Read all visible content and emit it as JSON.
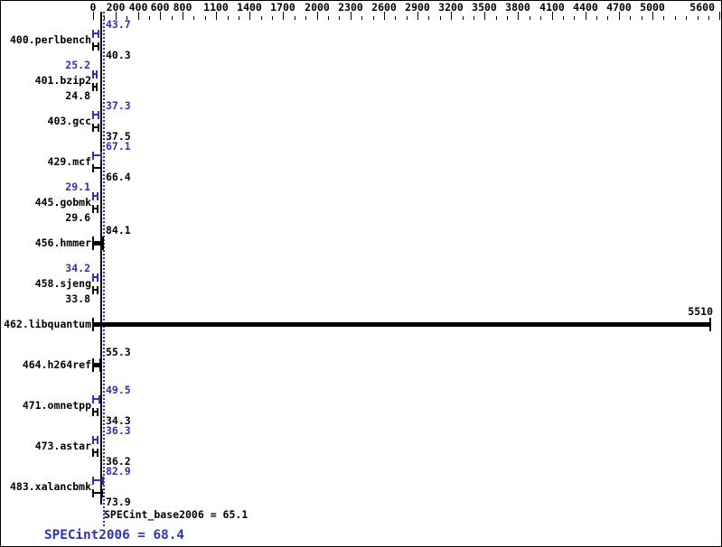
{
  "chart_data": {
    "type": "bar",
    "orientation": "horizontal",
    "title": "",
    "xlabel": "",
    "ylabel": "",
    "axis": {
      "min": 0,
      "max": 5600,
      "labeled_ticks": [
        0,
        200,
        400,
        600,
        800,
        1100,
        1400,
        1700,
        2000,
        2300,
        2600,
        2900,
        3200,
        3500,
        3800,
        4100,
        4400,
        4700,
        5000,
        5600
      ],
      "minor_tick_step": 100,
      "grid": false
    },
    "series_legend": {
      "peak_color_meaning": "peak ratio (blue)",
      "base_color_meaning": "base ratio (black)"
    },
    "benchmarks": [
      {
        "name": "400.perlbench",
        "peak": 43.7,
        "base": 40.3,
        "single": false,
        "label_side": "right"
      },
      {
        "name": "401.bzip2",
        "peak": 25.2,
        "base": 24.8,
        "single": false,
        "label_side": "left"
      },
      {
        "name": "403.gcc",
        "peak": 37.3,
        "base": 37.5,
        "single": false,
        "label_side": "right"
      },
      {
        "name": "429.mcf",
        "peak": 67.1,
        "base": 66.4,
        "single": false,
        "label_side": "right"
      },
      {
        "name": "445.gobmk",
        "peak": 29.1,
        "base": 29.6,
        "single": false,
        "label_side": "left"
      },
      {
        "name": "456.hmmer",
        "peak": null,
        "base": 84.1,
        "single": true,
        "label_side": "right"
      },
      {
        "name": "458.sjeng",
        "peak": 34.2,
        "base": 33.8,
        "single": false,
        "label_side": "left"
      },
      {
        "name": "462.libquantum",
        "peak": null,
        "base": 5510,
        "single": true,
        "label_side": "bar-end"
      },
      {
        "name": "464.h264ref",
        "peak": null,
        "base": 55.3,
        "single": true,
        "label_side": "right"
      },
      {
        "name": "471.omnetpp",
        "peak": 49.5,
        "base": 34.3,
        "single": false,
        "label_side": "right"
      },
      {
        "name": "473.astar",
        "peak": 36.3,
        "base": 36.2,
        "single": false,
        "label_side": "right"
      },
      {
        "name": "483.xalancbmk",
        "peak": 82.9,
        "base": 73.9,
        "single": false,
        "label_side": "right"
      }
    ],
    "mean_lines": {
      "base_value": 65.1,
      "peak_value": 68.4,
      "base_style": "solid black",
      "peak_style": "dotted blue"
    },
    "summary": {
      "base_label": "SPECint_base2006 = 65.1",
      "peak_label": "SPECint2006 = 68.4"
    },
    "colors": {
      "base": "#000000",
      "peak": "#3030b8",
      "background": "#ffffff"
    }
  }
}
